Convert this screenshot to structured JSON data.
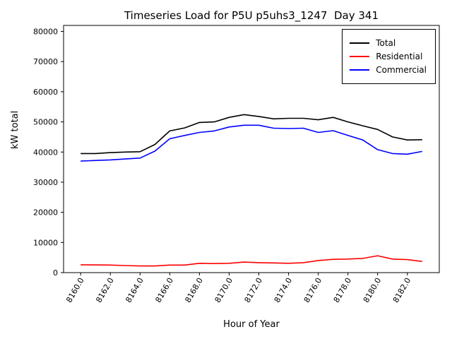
{
  "chart_data": {
    "type": "line",
    "title": "Timeseries Load for P5U p5uhs3_1247  Day 341",
    "xlabel": "Hour of Year",
    "ylabel": "kW total",
    "grid": false,
    "legend_position": "upper right",
    "xlim": [
      8158.85,
      8184.15
    ],
    "ylim": [
      0,
      82000
    ],
    "x_ticks": [
      8160.0,
      8162.0,
      8164.0,
      8166.0,
      8168.0,
      8170.0,
      8172.0,
      8174.0,
      8176.0,
      8178.0,
      8180.0,
      8182.0
    ],
    "x_tick_labels": [
      "8160.0",
      "8162.0",
      "8164.0",
      "8166.0",
      "8168.0",
      "8170.0",
      "8172.0",
      "8174.0",
      "8176.0",
      "8178.0",
      "8180.0",
      "8182.0"
    ],
    "y_ticks": [
      0,
      10000,
      20000,
      30000,
      40000,
      50000,
      60000,
      70000,
      80000
    ],
    "y_tick_labels": [
      "0",
      "10000",
      "20000",
      "30000",
      "40000",
      "50000",
      "60000",
      "70000",
      "80000"
    ],
    "x": [
      8160,
      8161,
      8162,
      8163,
      8164,
      8165,
      8166,
      8167,
      8168,
      8169,
      8170,
      8171,
      8172,
      8173,
      8174,
      8175,
      8176,
      8177,
      8178,
      8179,
      8180,
      8181,
      8182,
      8183
    ],
    "series": [
      {
        "name": "Total",
        "color": "#000000",
        "values": [
          39500,
          39500,
          39800,
          40000,
          40100,
          42500,
          47000,
          48000,
          49800,
          50000,
          51500,
          52400,
          51800,
          51000,
          51200,
          51200,
          50700,
          51500,
          50000,
          48700,
          47500,
          45000,
          44000,
          44100
        ]
      },
      {
        "name": "Residential",
        "color": "#ff0000",
        "values": [
          2600,
          2550,
          2500,
          2350,
          2200,
          2200,
          2500,
          2500,
          3100,
          3000,
          3100,
          3500,
          3300,
          3200,
          3100,
          3300,
          4000,
          4400,
          4500,
          4700,
          5600,
          4500,
          4300,
          3700
        ]
      },
      {
        "name": "Commercial",
        "color": "#0000ff",
        "values": [
          37000,
          37200,
          37400,
          37700,
          38000,
          40300,
          44400,
          45500,
          46500,
          47000,
          48300,
          48900,
          48900,
          47900,
          47800,
          47900,
          46500,
          47100,
          45500,
          44000,
          40800,
          39500,
          39300,
          40200
        ]
      }
    ]
  }
}
